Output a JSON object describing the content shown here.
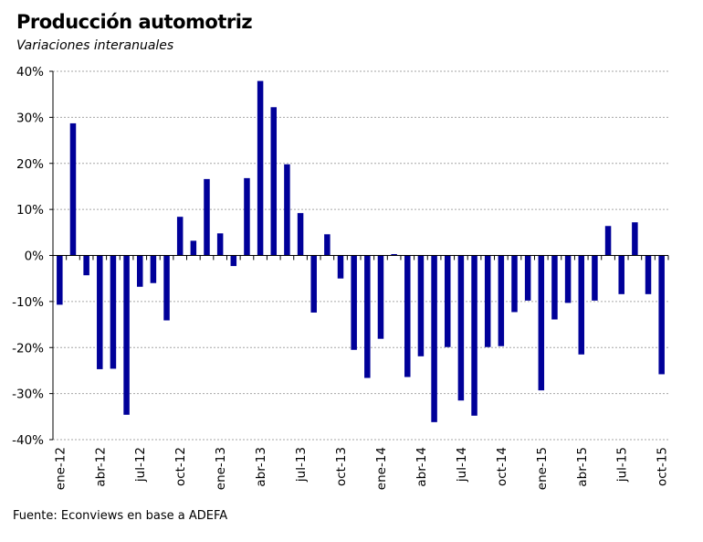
{
  "chart_data": {
    "type": "bar",
    "title": "Producción automotriz",
    "subtitle": "Variaciones interanuales",
    "source": "Fuente: Econviews en base a ADEFA",
    "ylim": [
      -40,
      40
    ],
    "yticks": [
      40,
      30,
      20,
      10,
      0,
      -10,
      -20,
      -30,
      -40
    ],
    "ytick_labels": [
      "40%",
      "30%",
      "20%",
      "10%",
      "0%",
      "-10%",
      "-20%",
      "-30%",
      "-40%"
    ],
    "grid": true,
    "bar_color": "#000099",
    "categories": [
      "ene-12",
      "feb-12",
      "mar-12",
      "abr-12",
      "may-12",
      "jun-12",
      "jul-12",
      "ago-12",
      "sep-12",
      "oct-12",
      "nov-12",
      "dic-12",
      "ene-13",
      "feb-13",
      "mar-13",
      "abr-13",
      "may-13",
      "jun-13",
      "jul-13",
      "ago-13",
      "sep-13",
      "oct-13",
      "nov-13",
      "dic-13",
      "ene-14",
      "feb-14",
      "mar-14",
      "abr-14",
      "may-14",
      "jun-14",
      "jul-14",
      "ago-14",
      "sep-14",
      "oct-14",
      "nov-14",
      "dic-14",
      "ene-15",
      "feb-15",
      "mar-15",
      "abr-15",
      "may-15",
      "jun-15",
      "jul-15",
      "ago-15",
      "sep-15",
      "oct-15"
    ],
    "x_tick_labels": [
      "ene-12",
      "abr-12",
      "jul-12",
      "oct-12",
      "ene-13",
      "abr-13",
      "jul-13",
      "oct-13",
      "ene-14",
      "abr-14",
      "jul-14",
      "oct-14",
      "ene-15",
      "abr-15",
      "jul-15",
      "oct-15"
    ],
    "values": [
      -10.7,
      28.7,
      -4.3,
      -24.7,
      -24.6,
      -34.6,
      -6.8,
      -6.0,
      -14.1,
      8.4,
      3.2,
      16.6,
      4.8,
      -2.3,
      16.8,
      37.9,
      32.2,
      19.8,
      9.2,
      -12.4,
      4.6,
      -5.0,
      -20.5,
      -26.6,
      -18.1,
      0.3,
      -26.4,
      -21.9,
      -36.2,
      -19.9,
      -31.5,
      -34.8,
      -19.9,
      -19.7,
      -12.3,
      -9.8,
      -29.3,
      -13.9,
      -10.3,
      -21.5,
      -9.8,
      6.4,
      -8.4,
      7.2,
      -8.4,
      -25.8
    ]
  }
}
